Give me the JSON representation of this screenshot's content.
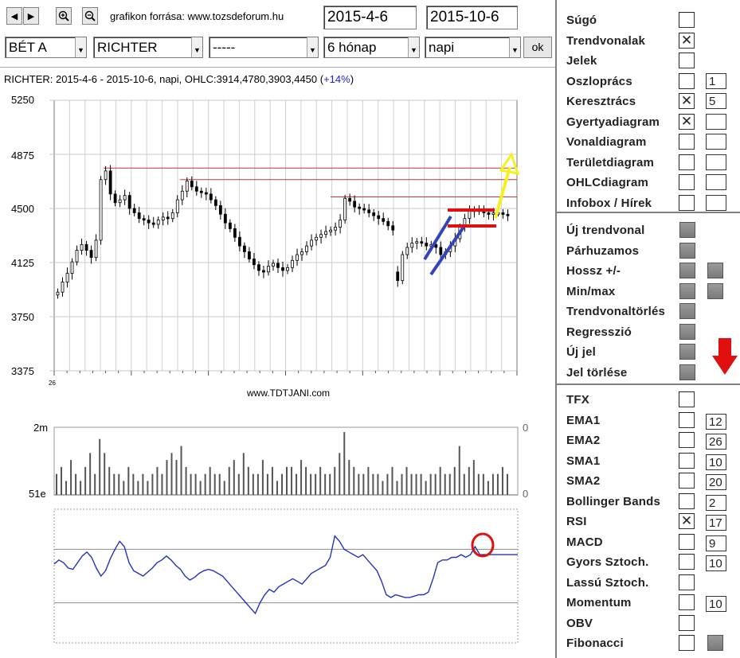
{
  "toolbar": {
    "nav_prev": "◀",
    "nav_next": "▶",
    "zoom_in_icon": "zoom-in-icon",
    "zoom_out_icon": "zoom-out-icon",
    "source_label": "grafikon forrása: www.tozsdeforum.hu",
    "date_from": "2015-4-6",
    "date_to": "2015-10-6",
    "market": "BÉT A",
    "stock": "RICHTER",
    "compare": "-----",
    "period": "6 hónap",
    "interval": "napi",
    "ok_label": "ok"
  },
  "chart_header": {
    "text": "RICHTER: 2015-4-6 - 2015-10-6, napi, OHLC:3914,4780,3903,4450 (",
    "change": "+14%",
    "close_paren": ")"
  },
  "watermark": "www.TDTJANI.com",
  "price_axis": [
    "5250",
    "4875",
    "4500",
    "4125",
    "3750",
    "3375"
  ],
  "x_axis_marker": "26",
  "volume_axis": {
    "top_left": "2m",
    "bottom_left": "51e",
    "top_right": "0",
    "bottom_right": "0"
  },
  "chart_data": {
    "type": "candlestick",
    "title": "RICHTER: 2015-4-6 - 2015-10-6, napi, OHLC:3914,4780,3903,4450 (+14%)",
    "ylim": [
      3375,
      5250
    ],
    "yticks": [
      5250,
      4875,
      4500,
      4125,
      3750,
      3375
    ],
    "ohlc_summary": {
      "open": 3914,
      "high": 4780,
      "low": 3903,
      "close": 4450
    },
    "close_series": [
      3920,
      3990,
      4050,
      4130,
      4210,
      4250,
      4210,
      4160,
      4280,
      4700,
      4760,
      4600,
      4540,
      4560,
      4590,
      4500,
      4470,
      4430,
      4420,
      4400,
      4390,
      4420,
      4440,
      4430,
      4470,
      4560,
      4620,
      4690,
      4650,
      4620,
      4610,
      4600,
      4560,
      4520,
      4460,
      4400,
      4360,
      4300,
      4240,
      4200,
      4150,
      4110,
      4070,
      4060,
      4100,
      4120,
      4090,
      4070,
      4090,
      4140,
      4180,
      4200,
      4240,
      4280,
      4300,
      4320,
      4340,
      4350,
      4370,
      4420,
      4570,
      4550,
      4510,
      4500,
      4490,
      4470,
      4450,
      4430,
      4410,
      4380,
      4350,
      4000,
      4180,
      4230,
      4260,
      4270,
      4260,
      4240,
      4250,
      4230,
      4180,
      4200,
      4240,
      4290,
      4370,
      4430,
      4480,
      4490,
      4480,
      4470,
      4460,
      4470,
      4470,
      4460,
      4450
    ],
    "volume_series": [
      3,
      4,
      2,
      5,
      3,
      2,
      4,
      6,
      3,
      8,
      6,
      4,
      3,
      3,
      2,
      4,
      3,
      2,
      3,
      2,
      3,
      4,
      3,
      5,
      6,
      5,
      7,
      4,
      3,
      3,
      2,
      3,
      4,
      3,
      3,
      2,
      4,
      5,
      3,
      6,
      4,
      3,
      3,
      5,
      3,
      4,
      2,
      3,
      4,
      4,
      3,
      5,
      4,
      3,
      3,
      4,
      3,
      3,
      4,
      6,
      9,
      5,
      4,
      3,
      3,
      4,
      3,
      3,
      2,
      3,
      4,
      2,
      3,
      4,
      3,
      3,
      3,
      2,
      3,
      3,
      4,
      3,
      3,
      4,
      7,
      3,
      4,
      5,
      3,
      3,
      2,
      3,
      3,
      4,
      3
    ],
    "rsi_series": [
      59,
      62,
      60,
      56,
      55,
      60,
      65,
      68,
      64,
      56,
      50,
      54,
      63,
      70,
      76,
      72,
      60,
      54,
      52,
      50,
      53,
      56,
      60,
      62,
      65,
      62,
      58,
      55,
      50,
      47,
      49,
      52,
      54,
      55,
      54,
      52,
      50,
      46,
      42,
      38,
      34,
      30,
      26,
      22,
      30,
      36,
      40,
      38,
      42,
      44,
      46,
      48,
      46,
      44,
      48,
      52,
      54,
      56,
      58,
      64,
      80,
      76,
      70,
      68,
      66,
      64,
      66,
      62,
      58,
      54,
      46,
      36,
      34,
      36,
      35,
      34,
      34,
      35,
      36,
      36,
      38,
      48,
      60,
      62,
      62,
      64,
      64,
      66,
      64,
      66,
      72,
      66,
      66,
      66,
      66
    ],
    "rsi_levels": [
      70,
      30
    ],
    "annotations": {
      "resistance_lines": [
        4780,
        4700,
        4580
      ],
      "channel": "red-box",
      "trend": "blue-channel",
      "arrow": "yellow-up"
    }
  },
  "panel": {
    "group1": [
      {
        "label": "Súgó",
        "checked": false,
        "num": null
      },
      {
        "label": "Trendvonalak",
        "checked": true,
        "num": null
      },
      {
        "label": "Jelek",
        "checked": false,
        "num": null
      },
      {
        "label": "Oszloprács",
        "checked": false,
        "num": "1"
      },
      {
        "label": "Keresztrács",
        "checked": true,
        "num": "5"
      },
      {
        "label": "Gyertyadiagram",
        "checked": true,
        "num": ""
      },
      {
        "label": "Vonaldiagram",
        "checked": false,
        "num": ""
      },
      {
        "label": "Területdiagram",
        "checked": false,
        "num": ""
      },
      {
        "label": "OHLCdiagram",
        "checked": false,
        "num": ""
      },
      {
        "label": "Infobox / Hírek",
        "checked": false,
        "num": ""
      }
    ],
    "group2": [
      {
        "label": "Új trendvonal",
        "btn2": false
      },
      {
        "label": "Párhuzamos",
        "btn2": false
      },
      {
        "label": "Hossz +/-",
        "btn2": true
      },
      {
        "label": "Min/max",
        "btn2": true
      },
      {
        "label": "Trendvonaltörlés",
        "btn2": false
      },
      {
        "label": "Regresszió",
        "btn2": false
      },
      {
        "label": "Új jel",
        "btn2": false
      },
      {
        "label": "Jel törlése",
        "btn2": false
      }
    ],
    "group3": [
      {
        "label": "TFX",
        "checked": false,
        "num": null
      },
      {
        "label": "EMA1",
        "checked": false,
        "num": "12"
      },
      {
        "label": "EMA2",
        "checked": false,
        "num": "26"
      },
      {
        "label": "SMA1",
        "checked": false,
        "num": "10"
      },
      {
        "label": "SMA2",
        "checked": false,
        "num": "20"
      },
      {
        "label": "Bollinger Bands",
        "checked": false,
        "num": "2"
      },
      {
        "label": "RSI",
        "checked": true,
        "num": "17"
      },
      {
        "label": "MACD",
        "checked": false,
        "num": "9"
      },
      {
        "label": "Gyors Sztoch.",
        "checked": false,
        "num": "10"
      },
      {
        "label": "Lassú Sztoch.",
        "checked": false,
        "num": null
      },
      {
        "label": "Momentum",
        "checked": false,
        "num": "10"
      },
      {
        "label": "OBV",
        "checked": false,
        "num": null
      },
      {
        "label": "Fibonacci",
        "checked": false,
        "num": "btn"
      }
    ],
    "arrow_color": "#e01010"
  },
  "colors": {
    "candle": "#000000",
    "resistance": "#cc3333",
    "channel_red": "#dd1111",
    "trend_blue": "#3344bb",
    "arrow_yellow": "#f5f020",
    "rsi_line": "#2233bb",
    "change_blue": "#2222cc"
  }
}
